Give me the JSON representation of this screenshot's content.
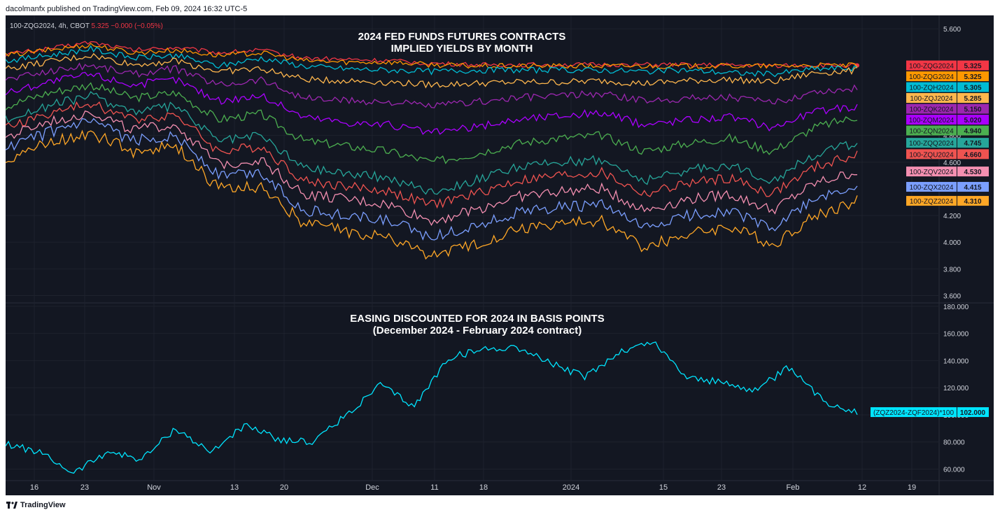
{
  "header": {
    "published": "dacolmanfx published on TradingView.com, Feb 09, 2024 16:32 UTC-5",
    "symbol": "100-ZQG2024, 4h, CBOT",
    "price": "5.325",
    "change": "−0.000 (−0.05%)"
  },
  "footer": {
    "brand": "TradingView"
  },
  "colors": {
    "background": "#131722",
    "panel_bg": "#131722",
    "grid": "#1e222d",
    "text": "#d1d4dc"
  },
  "chart_data": [
    {
      "type": "line",
      "title": "2024 FED FUNDS FUTURES CONTRACTS",
      "subtitle": "IMPLIED YIELDS BY MONTH",
      "x_ticks": [
        "16",
        "23",
        "Nov",
        "13",
        "20",
        "Dec",
        "11",
        "18",
        "2024",
        "15",
        "23",
        "Feb",
        "12",
        "19"
      ],
      "y_ticks": [
        "5.600",
        "4.800",
        "4.600",
        "4.200",
        "4.000",
        "3.800",
        "3.600"
      ],
      "ylim": [
        3.55,
        5.7
      ],
      "series": [
        {
          "name": "100-ZQG2024",
          "last": "5.325",
          "color": "#f23645",
          "values": [
            5.41,
            5.45,
            5.5,
            5.44,
            5.46,
            5.42,
            5.44,
            5.38,
            5.37,
            5.36,
            5.34,
            5.33,
            5.33,
            5.33,
            5.33,
            5.33,
            5.33,
            5.325,
            5.325,
            5.325,
            5.325
          ]
        },
        {
          "name": "100-ZQG2024",
          "last": "5.325",
          "color": "#ff9800",
          "values": [
            5.4,
            5.44,
            5.48,
            5.42,
            5.44,
            5.4,
            5.42,
            5.36,
            5.35,
            5.35,
            5.33,
            5.32,
            5.32,
            5.32,
            5.32,
            5.32,
            5.32,
            5.32,
            5.32,
            5.325,
            5.325
          ]
        },
        {
          "name": "100-ZQH2024",
          "last": "5.305",
          "color": "#00bcd4",
          "values": [
            5.36,
            5.4,
            5.45,
            5.38,
            5.4,
            5.32,
            5.38,
            5.32,
            5.3,
            5.29,
            5.28,
            5.29,
            5.29,
            5.29,
            5.29,
            5.28,
            5.29,
            5.27,
            5.26,
            5.3,
            5.305
          ]
        },
        {
          "name": "100-ZQJ2024",
          "last": "5.285",
          "color": "#ffb74d",
          "values": [
            5.3,
            5.35,
            5.4,
            5.33,
            5.36,
            5.28,
            5.3,
            5.22,
            5.21,
            5.2,
            5.18,
            5.19,
            5.2,
            5.2,
            5.21,
            5.19,
            5.21,
            5.22,
            5.2,
            5.27,
            5.285
          ]
        },
        {
          "name": "100-ZQK2024",
          "last": "5.150",
          "color": "#9c27b0",
          "values": [
            5.22,
            5.28,
            5.33,
            5.26,
            5.3,
            5.18,
            5.22,
            5.08,
            5.06,
            5.05,
            5.02,
            5.05,
            5.08,
            5.1,
            5.11,
            5.06,
            5.08,
            5.09,
            5.04,
            5.13,
            5.15
          ]
        },
        {
          "name": "100-ZQM2024",
          "last": "5.020",
          "color": "#aa00ff",
          "values": [
            5.12,
            5.2,
            5.26,
            5.18,
            5.22,
            5.06,
            5.1,
            4.94,
            4.9,
            4.88,
            4.82,
            4.86,
            4.92,
            4.95,
            4.97,
            4.88,
            4.92,
            4.94,
            4.86,
            4.98,
            5.02
          ]
        },
        {
          "name": "100-ZQN2024",
          "last": "4.940",
          "color": "#4caf50",
          "values": [
            5.02,
            5.12,
            5.18,
            5.08,
            5.12,
            4.92,
            4.96,
            4.76,
            4.72,
            4.68,
            4.6,
            4.66,
            4.74,
            4.78,
            4.8,
            4.68,
            4.74,
            4.78,
            4.68,
            4.86,
            4.94
          ]
        },
        {
          "name": "100-ZQQ2024",
          "last": "4.745",
          "color": "#26a69a",
          "values": [
            4.92,
            5.02,
            5.1,
            4.98,
            5.02,
            4.76,
            4.8,
            4.56,
            4.52,
            4.48,
            4.38,
            4.46,
            4.56,
            4.6,
            4.62,
            4.46,
            4.54,
            4.58,
            4.46,
            4.66,
            4.745
          ]
        },
        {
          "name": "100-ZQU2024",
          "last": "4.660",
          "color": "#ef5350",
          "values": [
            4.86,
            4.96,
            5.04,
            4.92,
            4.96,
            4.68,
            4.72,
            4.46,
            4.42,
            4.38,
            4.28,
            4.36,
            4.46,
            4.5,
            4.52,
            4.36,
            4.44,
            4.48,
            4.36,
            4.56,
            4.66
          ]
        },
        {
          "name": "100-ZQV2024",
          "last": "4.530",
          "color": "#f48fb1",
          "values": [
            4.78,
            4.9,
            4.98,
            4.84,
            4.88,
            4.58,
            4.62,
            4.36,
            4.32,
            4.28,
            4.16,
            4.24,
            4.34,
            4.38,
            4.4,
            4.24,
            4.32,
            4.36,
            4.24,
            4.44,
            4.53
          ]
        },
        {
          "name": "100-ZQX2024",
          "last": "4.415",
          "color": "#7b9fff",
          "values": [
            4.7,
            4.82,
            4.9,
            4.76,
            4.8,
            4.5,
            4.52,
            4.24,
            4.2,
            4.16,
            4.04,
            4.12,
            4.22,
            4.26,
            4.28,
            4.1,
            4.2,
            4.24,
            4.1,
            4.32,
            4.415
          ]
        },
        {
          "name": "100-ZQZ2024",
          "last": "4.310",
          "color": "#ffa726",
          "values": [
            4.62,
            4.74,
            4.82,
            4.68,
            4.72,
            4.4,
            4.42,
            4.14,
            4.08,
            4.04,
            3.9,
            3.98,
            4.1,
            4.14,
            4.16,
            3.96,
            4.06,
            4.12,
            3.98,
            4.2,
            4.31
          ]
        }
      ]
    },
    {
      "type": "line",
      "title": "EASING DISCOUNTED FOR 2024 IN BASIS POINTS",
      "subtitle": "(December 2024 - February 2024 contract)",
      "y_ticks": [
        "180.000",
        "160.000",
        "140.000",
        "120.000",
        "100.000",
        "80.000",
        "60.000"
      ],
      "ylim": [
        52,
        182
      ],
      "series": [
        {
          "name": "(ZQZ2024-ZQF2024)*100",
          "last": "102.000",
          "color": "#00e5ff",
          "values": [
            79,
            72,
            57,
            73,
            67,
            90,
            72,
            92,
            82,
            80,
            100,
            122,
            106,
            142,
            148,
            150,
            138,
            128,
            146,
            154,
            128,
            124,
            118,
            135,
            110,
            102
          ]
        }
      ]
    }
  ]
}
